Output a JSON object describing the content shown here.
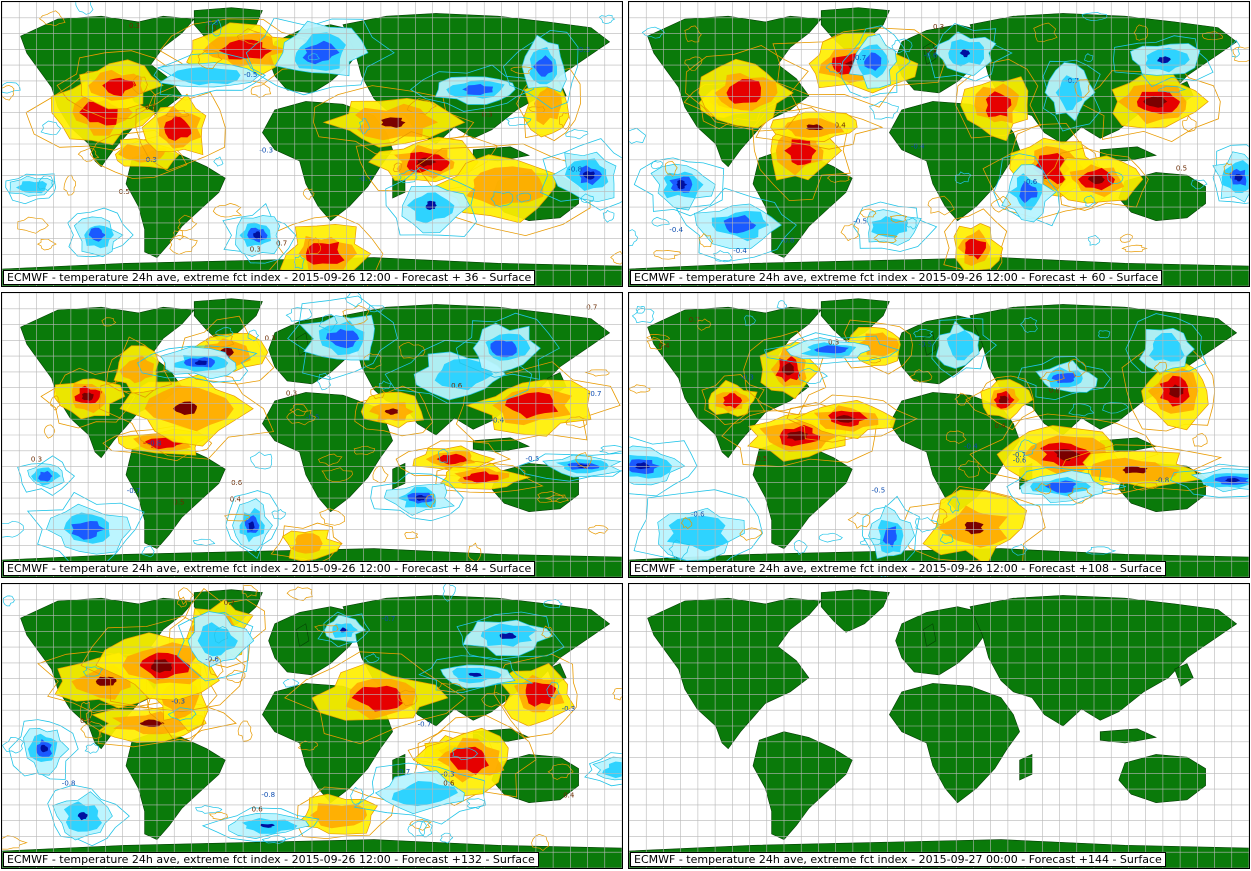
{
  "panels": [
    {
      "caption": "ECMWF - temperature 24h ave, extreme fct index - 2015-09-26 12:00 - Forecast + 36 - Surface",
      "has_field": true,
      "seed": 11
    },
    {
      "caption": "ECMWF - temperature 24h ave, extreme fct index - 2015-09-26 12:00 - Forecast + 60 - Surface",
      "has_field": true,
      "seed": 23
    },
    {
      "caption": "ECMWF - temperature 24h ave, extreme fct index - 2015-09-26 12:00 - Forecast + 84 - Surface",
      "has_field": true,
      "seed": 37
    },
    {
      "caption": "ECMWF - temperature 24h ave, extreme fct index - 2015-09-26 12:00 - Forecast +108 - Surface",
      "has_field": true,
      "seed": 41
    },
    {
      "caption": "ECMWF - temperature 24h ave, extreme fct index - 2015-09-26 12:00 - Forecast +132 - Surface",
      "has_field": true,
      "seed": 53
    },
    {
      "caption": "ECMWF - temperature 24h ave, extreme fct index - 2015-09-27 00:00 - Forecast +144 - Surface",
      "has_field": false,
      "seed": 0
    }
  ],
  "contour_labels": [
    "0.8",
    "0.7",
    "0.6",
    "0.5",
    "0.4",
    "0.3",
    "-0.3",
    "-0.4",
    "-0.5",
    "-0.6",
    "-0.7",
    "-0.8"
  ],
  "colors": {
    "land": "#0a7a0a",
    "grid": "#b8b8b8",
    "warm_1": "#ffef00",
    "warm_2": "#ffa500",
    "warm_3": "#e60000",
    "warm_4": "#7a0000",
    "cold_1": "#b8f4ff",
    "cold_2": "#2ed3ff",
    "cold_3": "#1a5aff",
    "cold_4": "#0010a0",
    "contour_warm": "#e89a00",
    "contour_cold": "#21c4e8"
  }
}
